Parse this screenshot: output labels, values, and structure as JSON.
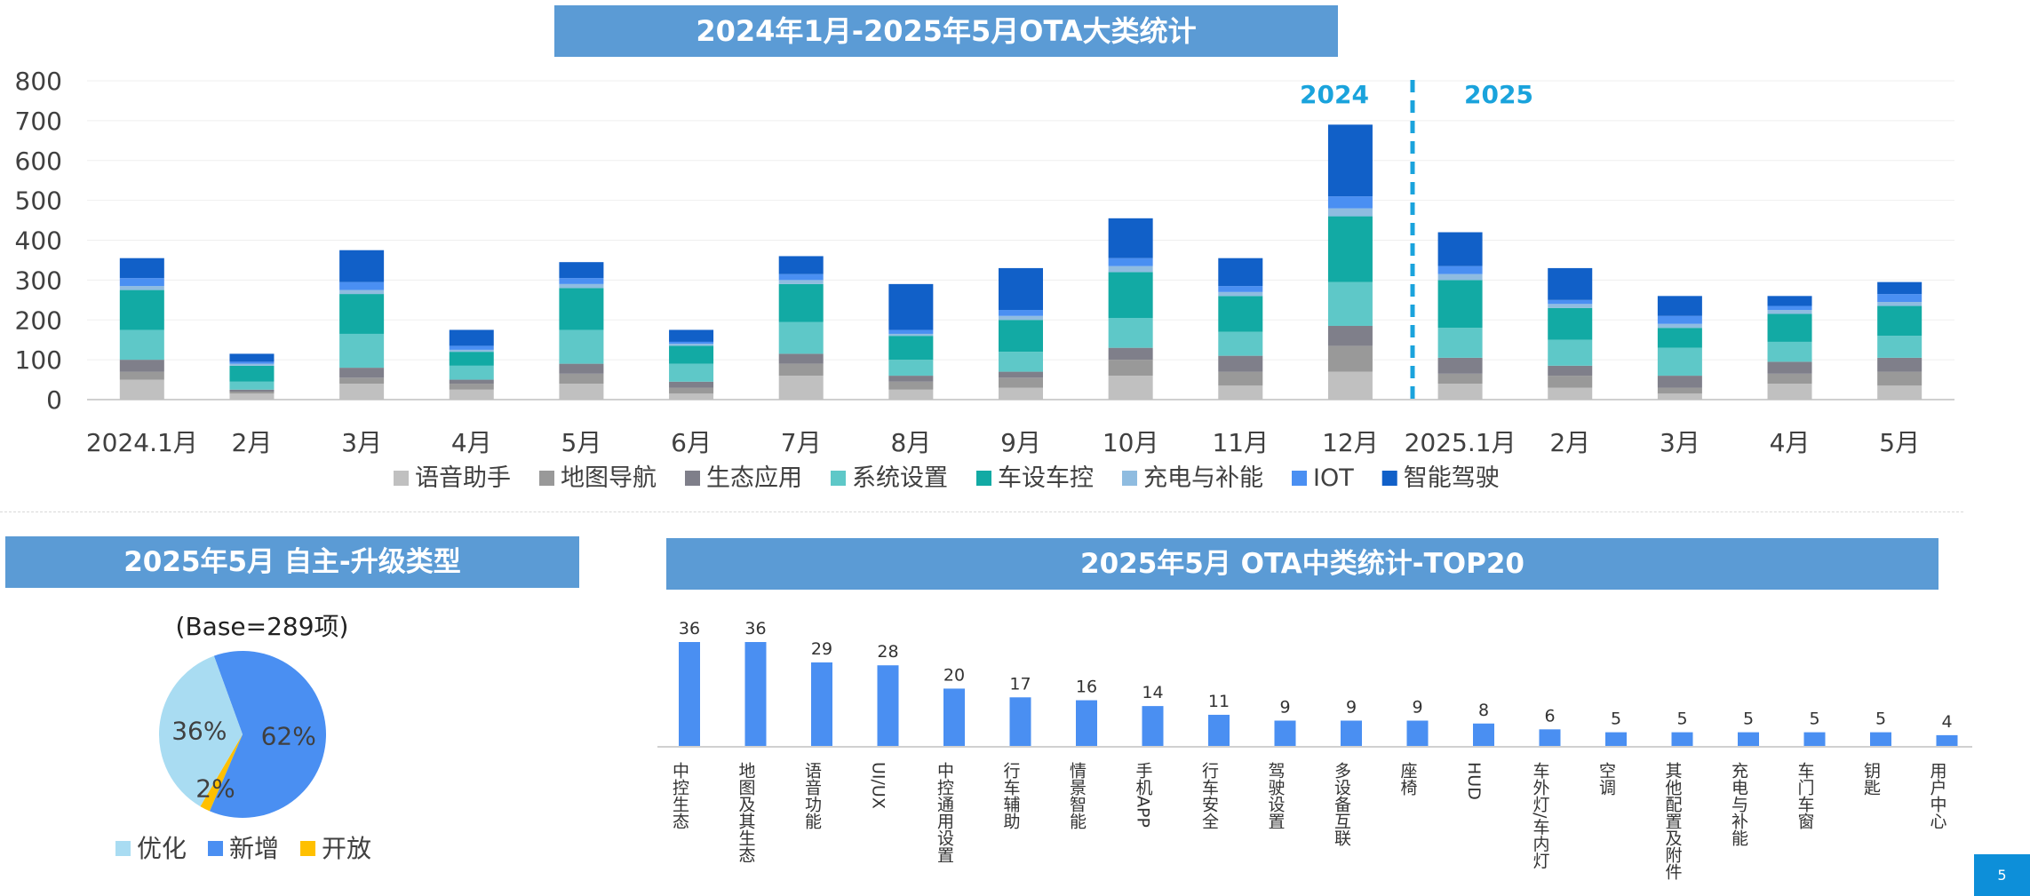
{
  "titles": {
    "main": "2024年1月-2025年5月OTA大类统计",
    "pie": "2025年5月 自主-升级类型",
    "top20": "2025年5月 OTA中类统计-TOP20"
  },
  "pie_base": "(Base=289项)",
  "page_number": "5",
  "year_labels": {
    "left": "2024",
    "right": "2025"
  },
  "colors": {
    "title_bar": "#5b9bd5",
    "year_label": "#1aa3dc",
    "bar_blue": "#4a8ff2"
  },
  "chart_data": [
    {
      "type": "bar",
      "stacked": true,
      "title": "2024年1月-2025年5月OTA大类统计",
      "categories": [
        "2024.1月",
        "2月",
        "3月",
        "4月",
        "5月",
        "6月",
        "7月",
        "8月",
        "9月",
        "10月",
        "11月",
        "12月",
        "2025.1月",
        "2月",
        "3月",
        "4月",
        "5月"
      ],
      "ylim": [
        0,
        800
      ],
      "yticks": [
        0,
        100,
        200,
        300,
        400,
        500,
        600,
        700,
        800
      ],
      "grid": true,
      "legend_position": "bottom",
      "series": [
        {
          "name": "语音助手",
          "color": "#c0c0c0",
          "values": [
            50,
            15,
            40,
            25,
            40,
            15,
            60,
            25,
            30,
            60,
            35,
            70,
            40,
            30,
            15,
            40,
            35
          ]
        },
        {
          "name": "地图导航",
          "color": "#999999",
          "values": [
            20,
            5,
            15,
            15,
            25,
            15,
            30,
            20,
            25,
            40,
            35,
            65,
            25,
            30,
            15,
            25,
            35
          ]
        },
        {
          "name": "生态应用",
          "color": "#7f7f8a",
          "values": [
            30,
            5,
            25,
            10,
            25,
            15,
            25,
            15,
            15,
            30,
            40,
            50,
            40,
            25,
            30,
            30,
            35
          ]
        },
        {
          "name": "系统设置",
          "color": "#5ec8c8",
          "values": [
            75,
            20,
            85,
            35,
            85,
            45,
            80,
            40,
            50,
            75,
            60,
            110,
            75,
            65,
            70,
            50,
            55
          ]
        },
        {
          "name": "车设车控",
          "color": "#12aaa4",
          "values": [
            100,
            40,
            100,
            35,
            105,
            45,
            95,
            60,
            80,
            115,
            90,
            165,
            120,
            80,
            50,
            70,
            75
          ]
        },
        {
          "name": "充电与补能",
          "color": "#8fbce0",
          "values": [
            10,
            5,
            10,
            5,
            10,
            5,
            10,
            5,
            10,
            15,
            10,
            20,
            15,
            10,
            10,
            10,
            10
          ]
        },
        {
          "name": "IOT",
          "color": "#4a8ff2",
          "values": [
            20,
            5,
            20,
            10,
            15,
            5,
            15,
            10,
            15,
            20,
            15,
            30,
            20,
            10,
            20,
            10,
            20
          ]
        },
        {
          "name": "智能驾驶",
          "color": "#1160c8",
          "values": [
            50,
            20,
            80,
            40,
            40,
            30,
            45,
            115,
            105,
            100,
            70,
            180,
            85,
            80,
            50,
            25,
            30
          ]
        }
      ]
    },
    {
      "type": "pie",
      "title": "2025年5月 自主-升级类型",
      "labels": [
        "优化",
        "新增",
        "开放"
      ],
      "values": [
        36,
        62,
        2
      ],
      "display": [
        "36%",
        "62%",
        "2%"
      ],
      "colors": [
        "#a9dcf2",
        "#4a8ff2",
        "#ffc000"
      ],
      "legend_position": "bottom"
    },
    {
      "type": "bar",
      "title": "2025年5月 OTA中类统计-TOP20",
      "categories": [
        "中控生态",
        "地图及其生态",
        "语音功能",
        "UI/UX",
        "中控通用设置",
        "行车辅助",
        "情景智能",
        "手机APP",
        "行车安全",
        "驾驶设置",
        "多设备互联",
        "座椅",
        "HUD",
        "车外灯/车内灯",
        "空调",
        "其他配置及附件",
        "充电与补能",
        "车门车窗",
        "钥匙",
        "用户中心"
      ],
      "values": [
        36,
        36,
        29,
        28,
        20,
        17,
        16,
        14,
        11,
        9,
        9,
        9,
        8,
        6,
        5,
        5,
        5,
        5,
        5,
        4
      ],
      "ylim": [
        0,
        40
      ],
      "data_labels": true,
      "grid": false
    }
  ]
}
